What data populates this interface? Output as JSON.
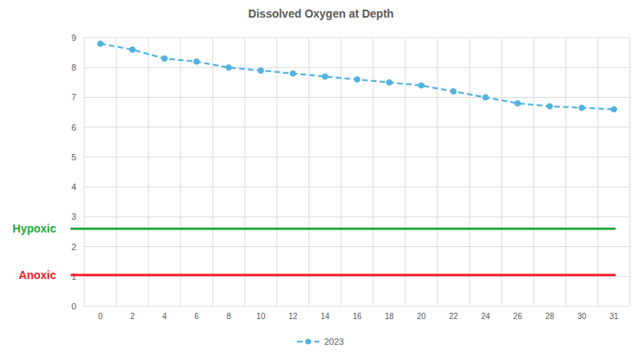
{
  "chart_data": {
    "type": "line",
    "title": "Dissolved Oxygen at Depth",
    "categories": [
      "0",
      "2",
      "4",
      "6",
      "8",
      "10",
      "12",
      "14",
      "16",
      "18",
      "20",
      "22",
      "24",
      "26",
      "28",
      "30",
      "31"
    ],
    "series": [
      {
        "name": "2023",
        "color": "#4fb3e3",
        "marker": "circle",
        "line_style": "dashed",
        "values": [
          8.8,
          8.6,
          8.3,
          8.2,
          8.0,
          7.9,
          7.8,
          7.7,
          7.6,
          7.5,
          7.4,
          7.2,
          7.0,
          6.8,
          6.7,
          6.65,
          6.6
        ]
      }
    ],
    "thresholds": [
      {
        "label": "Hypoxic",
        "value": 2.6,
        "color": "#22a83a"
      },
      {
        "label": "Anoxic",
        "value": 1.05,
        "color": "#ee1c25"
      }
    ],
    "ylim": [
      0,
      9
    ],
    "yticks": [
      0,
      1,
      2,
      3,
      4,
      5,
      6,
      7,
      8,
      9
    ],
    "grid": true,
    "legend": "bottom"
  }
}
